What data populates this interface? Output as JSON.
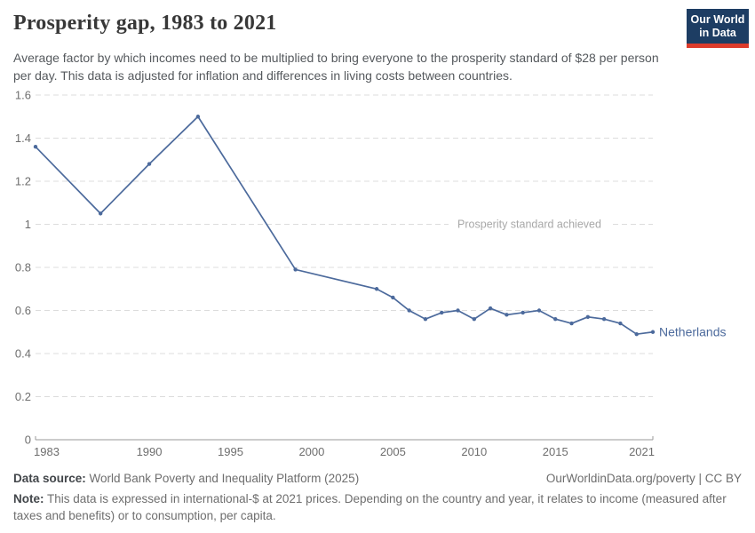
{
  "header": {
    "title": "Prosperity gap, 1983 to 2021",
    "subtitle": "Average factor by which incomes need to be multiplied to bring everyone to the prosperity standard of $28 per person per day. This data is adjusted for inflation and differences in living costs between countries.",
    "logo": {
      "line1": "Our World",
      "line2": "in Data",
      "bg_color": "#1d3d63",
      "bar_color": "#dc3b2b"
    }
  },
  "chart_data": {
    "type": "line",
    "title": "Prosperity gap, 1983 to 2021",
    "xlabel": "",
    "ylabel": "",
    "xlim": [
      1983,
      2021
    ],
    "ylim": [
      0,
      1.6
    ],
    "grid": "horizontal-dashed",
    "legend_position": "end-of-line-label",
    "x_ticks": [
      1983,
      1990,
      1995,
      2000,
      2005,
      2010,
      2015,
      2021
    ],
    "y_ticks": [
      {
        "v": 0,
        "label": "0"
      },
      {
        "v": 0.2,
        "label": "0.2"
      },
      {
        "v": 0.4,
        "label": "0.4"
      },
      {
        "v": 0.6,
        "label": "0.6"
      },
      {
        "v": 0.8,
        "label": "0.8"
      },
      {
        "v": 1,
        "label": "1"
      },
      {
        "v": 1.2,
        "label": "1.2"
      },
      {
        "v": 1.4,
        "label": "1.4"
      },
      {
        "v": 1.6,
        "label": "1.6"
      }
    ],
    "annotation": {
      "text": "Prosperity standard achieved",
      "y": 1
    },
    "series": [
      {
        "name": "Netherlands",
        "color": "#4c6a9c",
        "x": [
          1983,
          1987,
          1990,
          1993,
          1999,
          2004,
          2005,
          2006,
          2007,
          2008,
          2009,
          2010,
          2011,
          2012,
          2013,
          2014,
          2015,
          2016,
          2017,
          2018,
          2019,
          2020,
          2021
        ],
        "y": [
          1.36,
          1.05,
          1.28,
          1.5,
          0.79,
          0.7,
          0.66,
          0.6,
          0.56,
          0.59,
          0.6,
          0.56,
          0.61,
          0.58,
          0.59,
          0.6,
          0.56,
          0.54,
          0.57,
          0.56,
          0.54,
          0.49,
          0.5
        ]
      }
    ]
  },
  "footer": {
    "source_label": "Data source:",
    "source_text": " World Bank Poverty and Inequality Platform (2025)",
    "link": "OurWorldinData.org/poverty | CC BY",
    "note_label": "Note:",
    "note_text": " This data is expressed in international-$ at 2021 prices. Depending on the country and year, it relates to income (measured after taxes and benefits) or to consumption, per capita."
  }
}
